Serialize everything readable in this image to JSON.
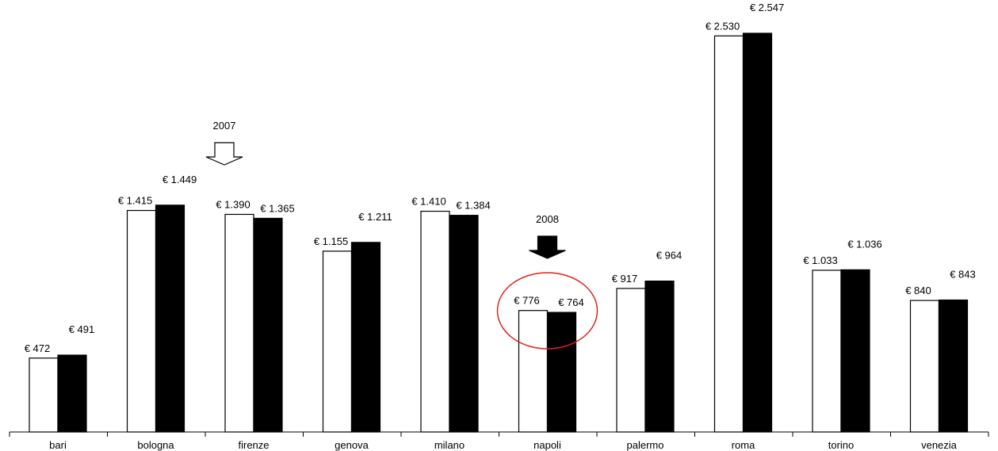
{
  "chart_data": {
    "type": "bar",
    "title": "",
    "xlabel": "",
    "ylabel": "",
    "categories": [
      "bari",
      "bologna",
      "firenze",
      "genova",
      "milano",
      "napoli",
      "palermo",
      "roma",
      "torino",
      "venezia"
    ],
    "series": [
      {
        "values": [
          472,
          1415,
          1390,
          1155,
          1410,
          776,
          917,
          2530,
          1033,
          840
        ],
        "labels": [
          "€ 472",
          "€ 1.415",
          "€ 1.390",
          "€ 1.155",
          "€ 1.410",
          "€ 776",
          "€ 917",
          "€ 2.530",
          "€ 1.033",
          "€ 840"
        ],
        "fill": "#ffffff",
        "stroke": "#000000"
      },
      {
        "values": [
          491,
          1449,
          1365,
          1211,
          1384,
          764,
          964,
          2547,
          1036,
          843
        ],
        "labels": [
          "€ 491",
          "€ 1.449",
          "€ 1.365",
          "€ 1.211",
          "€ 1.384",
          "€ 764",
          "€ 964",
          "€ 2.547",
          "€ 1.036",
          "€ 843"
        ],
        "fill": "#000000",
        "stroke": "#000000"
      }
    ],
    "ylim": [
      0,
      2600
    ],
    "grid": false,
    "legend": "none",
    "annotations": [
      {
        "text": "2007",
        "target_category": "firenze",
        "arrow_style": "outline",
        "arrow_color": "#000000"
      },
      {
        "text": "2008",
        "target_category": "napoli",
        "arrow_style": "filled",
        "arrow_color": "#000000"
      }
    ],
    "highlight": {
      "category": "napoli",
      "shape": "ellipse",
      "color": "#e0201a"
    },
    "colors": {
      "axis": "#000000"
    }
  }
}
